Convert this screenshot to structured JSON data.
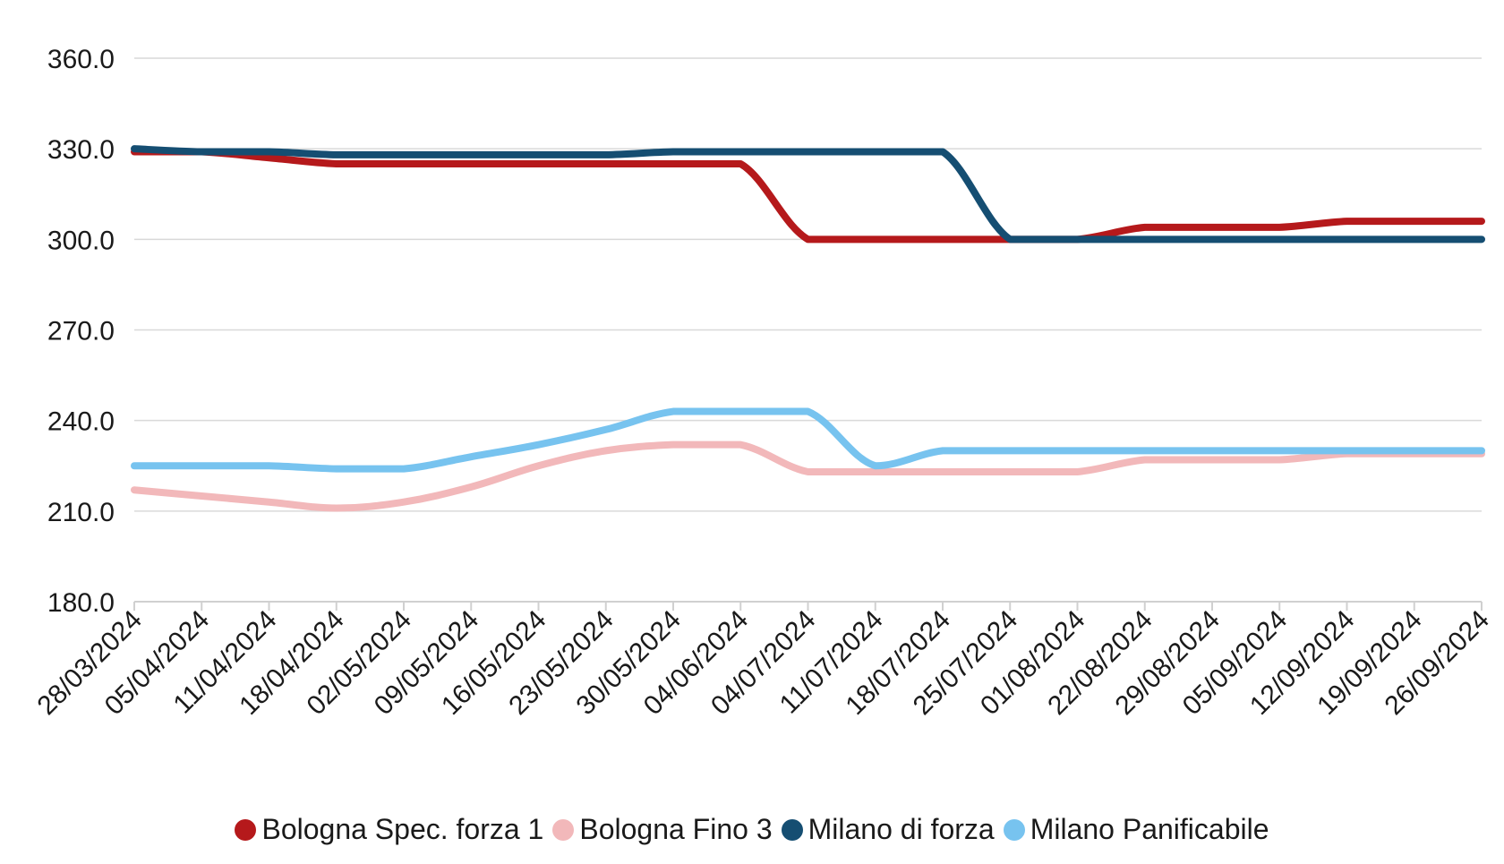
{
  "chart_data": {
    "type": "line",
    "title": "",
    "xlabel": "",
    "ylabel": "",
    "ylim": [
      180,
      360
    ],
    "yticks": [
      "180.0",
      "210.0",
      "240.0",
      "270.0",
      "300.0",
      "330.0",
      "360.0"
    ],
    "grid": true,
    "legend_position": "bottom",
    "categories": [
      "28/03/2024",
      "05/04/2024",
      "11/04/2024",
      "18/04/2024",
      "02/05/2024",
      "09/05/2024",
      "16/05/2024",
      "23/05/2024",
      "30/05/2024",
      "04/06/2024",
      "04/07/2024",
      "11/07/2024",
      "18/07/2024",
      "25/07/2024",
      "01/08/2024",
      "22/08/2024",
      "29/08/2024",
      "05/09/2024",
      "12/09/2024",
      "19/09/2024",
      "26/09/2024"
    ],
    "series": [
      {
        "name": "Bologna Spec. forza 1",
        "color": "#b5191b",
        "values": [
          329,
          329,
          327,
          325,
          325,
          325,
          325,
          325,
          325,
          325,
          300,
          300,
          300,
          300,
          300,
          304,
          304,
          304,
          306,
          306,
          306
        ]
      },
      {
        "name": "Bologna Fino 3",
        "color": "#f2b8ba",
        "values": [
          217,
          215,
          213,
          211,
          213,
          218,
          225,
          230,
          232,
          232,
          223,
          223,
          223,
          223,
          223,
          227,
          227,
          227,
          229,
          229,
          229
        ]
      },
      {
        "name": "Milano di forza",
        "color": "#154e72",
        "values": [
          330,
          329,
          329,
          328,
          328,
          328,
          328,
          328,
          329,
          329,
          329,
          329,
          329,
          300,
          300,
          300,
          300,
          300,
          300,
          300,
          300
        ]
      },
      {
        "name": "Milano Panificabile",
        "color": "#77c3ef",
        "values": [
          225,
          225,
          225,
          224,
          224,
          228,
          232,
          237,
          243,
          243,
          243,
          225,
          230,
          230,
          230,
          230,
          230,
          230,
          230,
          230,
          230
        ]
      }
    ]
  }
}
